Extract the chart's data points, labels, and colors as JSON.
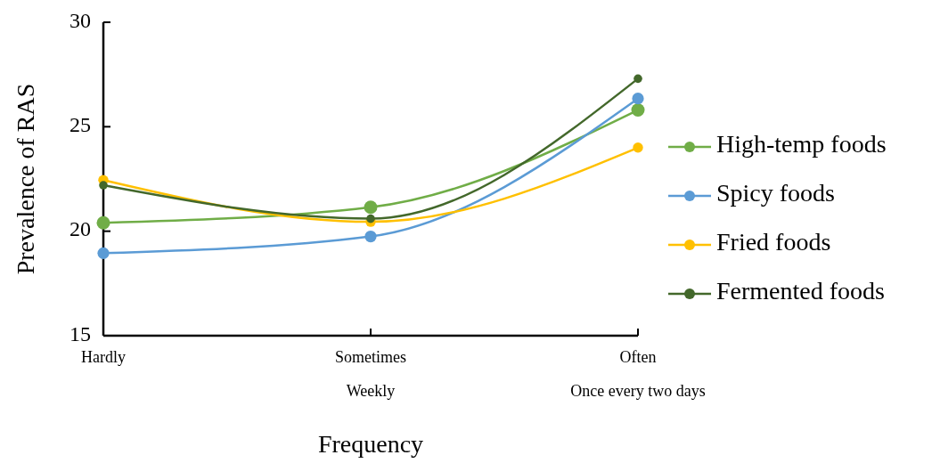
{
  "chart_data": {
    "type": "line",
    "xlabel": "Frequency",
    "ylabel": "Prevalence of RAS",
    "categories": [
      "Hardly",
      "Sometimes\nWeekly",
      "Often\nOnce every two days"
    ],
    "ylim": [
      15,
      30
    ],
    "yticks": [
      15,
      20,
      25,
      30
    ],
    "grid": false,
    "legend": "right",
    "marker": "circle",
    "line_style": "solid",
    "series": [
      {
        "name": "High-temp foods",
        "color": "#70ad47",
        "values": [
          20.4,
          21.15,
          25.8
        ]
      },
      {
        "name": "Spicy foods",
        "color": "#5b9bd5",
        "values": [
          18.95,
          19.75,
          26.35
        ]
      },
      {
        "name": "Fried foods",
        "color": "#ffc000",
        "values": [
          22.45,
          20.45,
          24.0
        ]
      },
      {
        "name": "Fermented foods",
        "color": "#43682b",
        "values": [
          22.2,
          20.6,
          27.3
        ]
      }
    ]
  }
}
